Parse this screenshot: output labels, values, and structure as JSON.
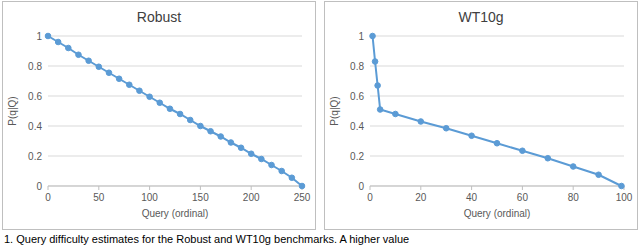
{
  "chart_data": [
    {
      "type": "line",
      "title": "Robust",
      "x_label": "Query (ordinal)",
      "y_label": "P(q|Q)",
      "x": [
        0,
        10,
        20,
        30,
        40,
        50,
        60,
        70,
        80,
        90,
        100,
        110,
        120,
        130,
        140,
        150,
        160,
        170,
        180,
        190,
        200,
        210,
        220,
        230,
        240,
        250
      ],
      "values": [
        1.0,
        0.96,
        0.92,
        0.875,
        0.835,
        0.795,
        0.755,
        0.715,
        0.675,
        0.635,
        0.595,
        0.555,
        0.515,
        0.48,
        0.44,
        0.4,
        0.365,
        0.33,
        0.29,
        0.255,
        0.215,
        0.18,
        0.14,
        0.1,
        0.055,
        0.0
      ],
      "color": "#5b9bd5",
      "marker": "circle",
      "line_style": "solid",
      "xlim": [
        0,
        250
      ],
      "xticks": [
        0,
        50,
        100,
        150,
        200,
        250
      ],
      "ylim": [
        0,
        1
      ],
      "yticks": [
        0,
        0.2,
        0.4,
        0.6,
        0.8,
        1
      ],
      "grid": true
    },
    {
      "type": "line",
      "title": "WT10g",
      "x_label": "Query (ordinal)",
      "y_label": "P(q|Q)",
      "x": [
        1,
        2,
        3,
        4,
        10,
        20,
        30,
        40,
        50,
        60,
        70,
        80,
        90,
        99
      ],
      "values": [
        1.0,
        0.83,
        0.67,
        0.51,
        0.48,
        0.43,
        0.385,
        0.335,
        0.285,
        0.235,
        0.185,
        0.13,
        0.075,
        0.0
      ],
      "color": "#5b9bd5",
      "marker": "circle",
      "line_style": "solid",
      "xlim": [
        0,
        100
      ],
      "xticks": [
        0,
        20,
        40,
        60,
        80,
        100
      ],
      "ylim": [
        0,
        1
      ],
      "yticks": [
        0,
        0.2,
        0.4,
        0.6,
        0.8,
        1
      ],
      "grid": true
    }
  ],
  "caption": "1. Query difficulty estimates for the Robust and WT10g benchmarks. A higher value"
}
